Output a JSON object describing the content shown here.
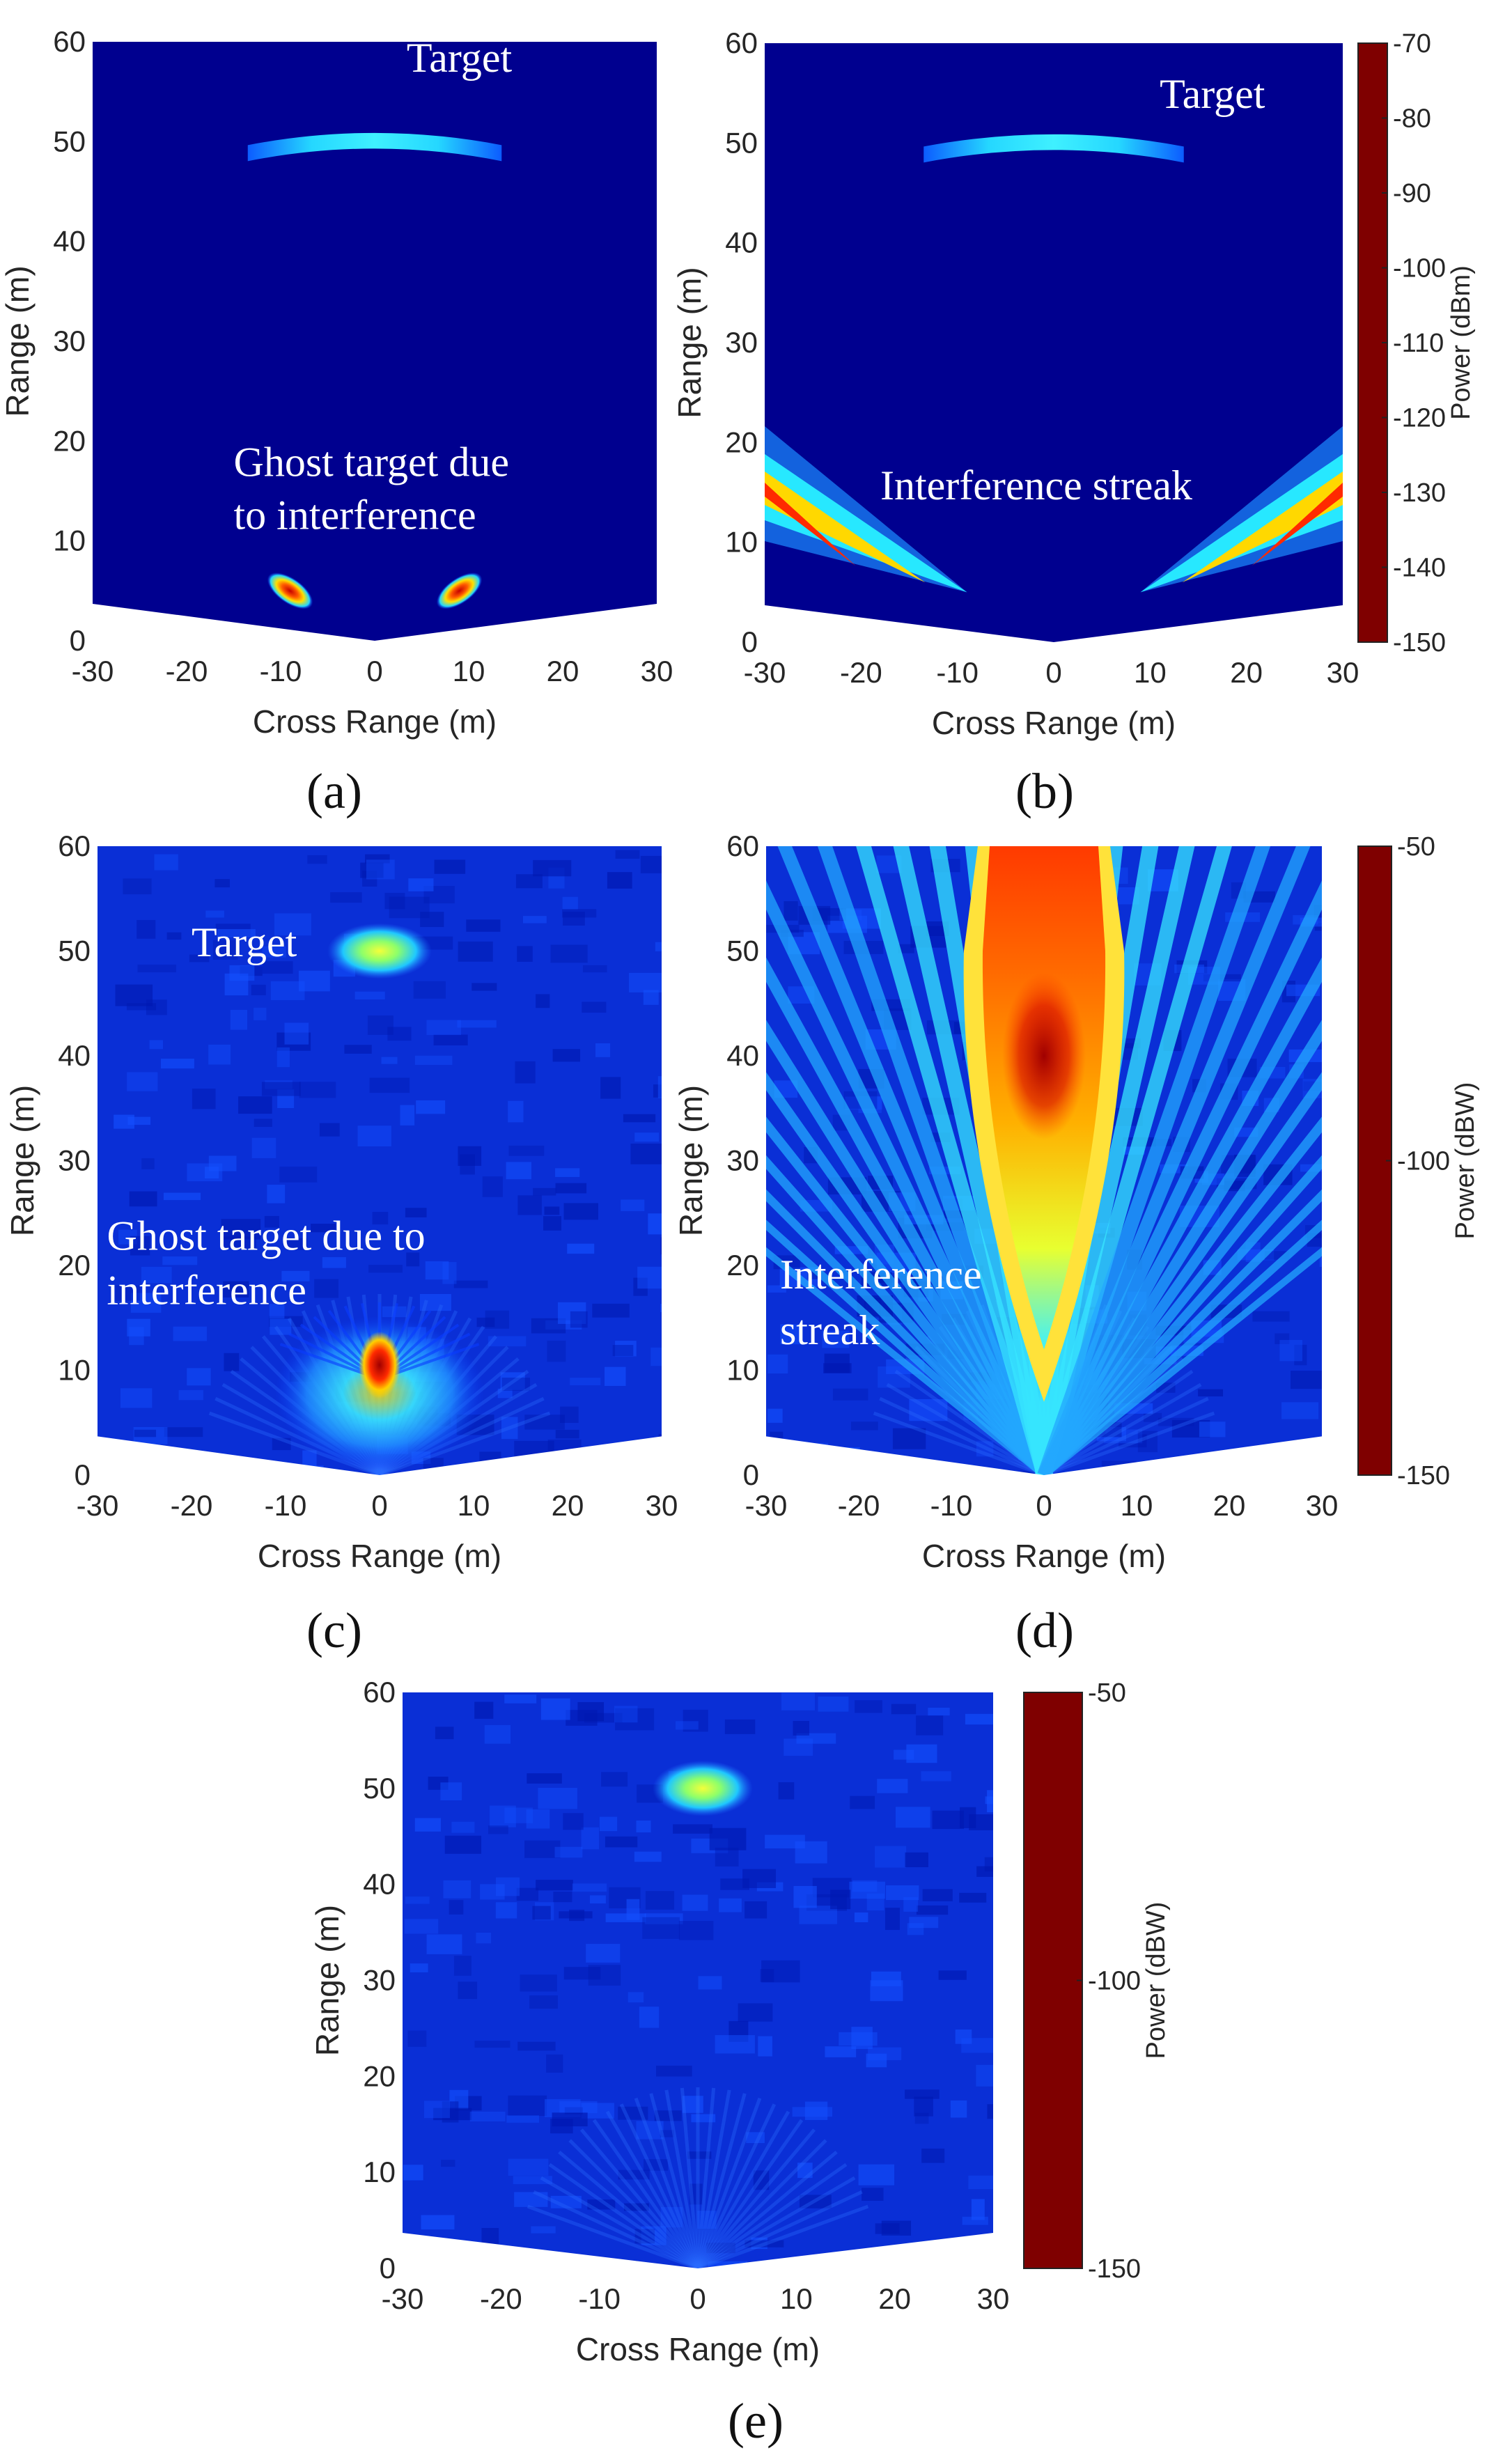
{
  "colors": {
    "background": "#00008f",
    "jet": [
      "#00007f",
      "#0000ff",
      "#007fff",
      "#00ffff",
      "#7fff7f",
      "#ffff00",
      "#ff7f00",
      "#ff0000",
      "#7f0000"
    ]
  },
  "chart_data": [
    {
      "id": "a",
      "type": "heatmap",
      "caption": "(a)",
      "xlabel": "Cross Range (m)",
      "ylabel": "Range (m)",
      "xlim": [
        -30,
        30
      ],
      "ylim": [
        0,
        60
      ],
      "xticks": [
        "-30",
        "-20",
        "-10",
        "0",
        "10",
        "20",
        "30"
      ],
      "yticks": [
        "0",
        "10",
        "20",
        "30",
        "40",
        "50",
        "60"
      ],
      "annotations": [
        {
          "text": "Target",
          "at": [
            9,
            57
          ]
        },
        {
          "text": "Ghost target due",
          "at": [
            -15,
            16.5
          ]
        },
        {
          "text": "to interference",
          "at": [
            -15,
            11.2
          ]
        }
      ],
      "features": {
        "target_range_m": 50,
        "ghost_points": [
          [
            -9,
            5
          ],
          [
            9,
            5
          ]
        ]
      }
    },
    {
      "id": "b",
      "type": "heatmap",
      "caption": "(b)",
      "xlabel": "Cross Range (m)",
      "ylabel": "Range (m)",
      "xlim": [
        -30,
        30
      ],
      "ylim": [
        0,
        60
      ],
      "xticks": [
        "-30",
        "-20",
        "-10",
        "0",
        "10",
        "20",
        "30"
      ],
      "yticks": [
        "0",
        "10",
        "20",
        "30",
        "40",
        "50",
        "60"
      ],
      "annotations": [
        {
          "text": "Target",
          "at": [
            11,
            53.5
          ]
        },
        {
          "text": "Interference streak",
          "at": [
            -18,
            14.3
          ]
        }
      ],
      "features": {
        "target_range_m": 50,
        "streaks": [
          [
            -30,
            15,
            -9,
            5
          ],
          [
            30,
            15,
            9,
            5
          ]
        ]
      },
      "colorbar": {
        "label": "Power (dBm)",
        "min": -150,
        "max": -70,
        "ticks": [
          "-70",
          "-80",
          "-90",
          "-100",
          "-110",
          "-120",
          "-130",
          "-140",
          "-150"
        ]
      }
    },
    {
      "id": "c",
      "type": "heatmap",
      "caption": "(c)",
      "xlabel": "Cross Range (m)",
      "ylabel": "Range (m)",
      "xlim": [
        -30,
        30
      ],
      "ylim": [
        0,
        60
      ],
      "xticks": [
        "-30",
        "-20",
        "-10",
        "0",
        "10",
        "20",
        "30"
      ],
      "yticks": [
        "0",
        "10",
        "20",
        "30",
        "40",
        "50",
        "60"
      ],
      "annotations": [
        {
          "text": "Target",
          "at": [
            -20,
            49.5
          ]
        },
        {
          "text": "Ghost target due to",
          "at": [
            -29,
            21.5
          ]
        },
        {
          "text": "interference",
          "at": [
            -29,
            16.3
          ]
        }
      ],
      "features": {
        "target_range_m": 50,
        "ghost_points": [
          [
            0,
            10.5
          ]
        ]
      }
    },
    {
      "id": "d",
      "type": "heatmap",
      "caption": "(d)",
      "xlabel": "Cross Range (m)",
      "ylabel": "Range (m)",
      "xlim": [
        -30,
        30
      ],
      "ylim": [
        0,
        60
      ],
      "xticks": [
        "-30",
        "-20",
        "-10",
        "0",
        "10",
        "20",
        "30"
      ],
      "yticks": [
        "0",
        "10",
        "20",
        "30",
        "40",
        "50",
        "60"
      ],
      "annotations": [
        {
          "text": "Interference",
          "at": [
            -28.5,
            17.8
          ]
        },
        {
          "text": "streak",
          "at": [
            -28.5,
            12.5
          ]
        }
      ],
      "features": {
        "streak_center_m": 0,
        "peak_range_m": 40
      },
      "colorbar": {
        "label": "Power (dBW)",
        "min": -150,
        "max": -50,
        "ticks": [
          "-50",
          "-100",
          "-150"
        ]
      }
    },
    {
      "id": "e",
      "type": "heatmap",
      "caption": "(e)",
      "xlabel": "Cross Range (m)",
      "ylabel": "Range (m)",
      "xlim": [
        -30,
        30
      ],
      "ylim": [
        0,
        60
      ],
      "xticks": [
        "-30",
        "-20",
        "-10",
        "0",
        "10",
        "20",
        "30"
      ],
      "yticks": [
        "0",
        "10",
        "20",
        "30",
        "40",
        "50",
        "60"
      ],
      "annotations": [],
      "features": {
        "target_range_m": 50
      },
      "colorbar": {
        "label": "Power (dBW)",
        "min": -150,
        "max": -50,
        "ticks": [
          "-50",
          "-100",
          "-150"
        ]
      }
    }
  ]
}
